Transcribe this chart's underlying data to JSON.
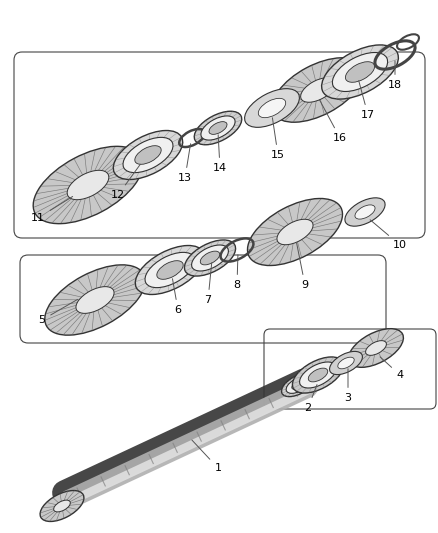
{
  "background_color": "#ffffff",
  "fig_width": 4.38,
  "fig_height": 5.33,
  "dpi": 100,
  "line_color": "#333333",
  "text_color": "#000000",
  "annotation_fontsize": 8,
  "gear_fill": "#c8c8c8",
  "gear_edge": "#333333",
  "bearing_fill": "#e0e0e0",
  "bearing_inner": "#a0a0a0",
  "shaft_light": "#d0d0d0",
  "shaft_dark": "#707070",
  "callout_color": "#555555",
  "items": [
    {
      "id": 1,
      "type": "shaft"
    },
    {
      "id": 2,
      "type": "bearing_ring"
    },
    {
      "id": 3,
      "type": "snap_ring"
    },
    {
      "id": 4,
      "type": "gear_small"
    },
    {
      "id": 5,
      "type": "gear_large"
    },
    {
      "id": 6,
      "type": "bearing"
    },
    {
      "id": 7,
      "type": "bearing"
    },
    {
      "id": 8,
      "type": "snap_ring"
    },
    {
      "id": 9,
      "type": "gear_medium"
    },
    {
      "id": 10,
      "type": "ring_small"
    },
    {
      "id": 11,
      "type": "gear_large"
    },
    {
      "id": 12,
      "type": "bearing"
    },
    {
      "id": 13,
      "type": "snap_ring"
    },
    {
      "id": 14,
      "type": "bearing_small"
    },
    {
      "id": 15,
      "type": "washer"
    },
    {
      "id": 16,
      "type": "gear_medium"
    },
    {
      "id": 17,
      "type": "bearing_large"
    },
    {
      "id": 18,
      "type": "snap_ring_large"
    }
  ]
}
